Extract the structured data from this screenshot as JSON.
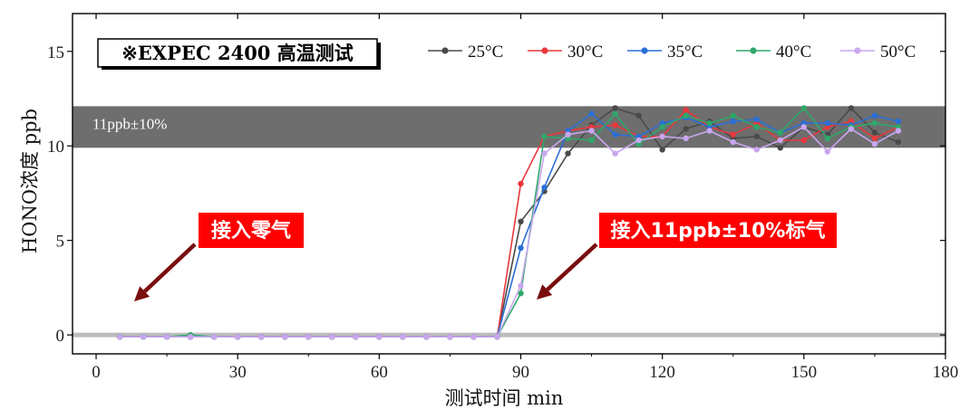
{
  "chart_data": {
    "type": "line",
    "title": "※EXPEC 2400 高温测试",
    "xlabel": "测试时间 min",
    "ylabel": "HONO浓度 ppb",
    "xlim": [
      -5,
      180
    ],
    "ylim": [
      -1,
      17
    ],
    "xticks": [
      0,
      30,
      60,
      90,
      120,
      150,
      180
    ],
    "yticks": [
      0,
      5,
      10,
      15
    ],
    "grid": false,
    "legend_position": "top-right",
    "band": {
      "label": "11ppb±10%",
      "y0": 9.9,
      "y1": 12.1,
      "color": "#6e6e6e"
    },
    "baseline": {
      "y": 0,
      "color": "#bdbdbd"
    },
    "annotations": [
      {
        "text": "接入零气",
        "color": "#ff0000",
        "arrow_color": "#7a0e0e",
        "x": 5,
        "y": 0.5
      },
      {
        "text": "接入11ppb±10%标气",
        "color": "#ff0000",
        "arrow_color": "#7a0e0e",
        "x": 93,
        "y": 0.5
      }
    ],
    "x": [
      5,
      10,
      15,
      20,
      25,
      30,
      35,
      40,
      45,
      50,
      55,
      60,
      65,
      70,
      75,
      80,
      85,
      90,
      95,
      100,
      105,
      110,
      115,
      120,
      125,
      130,
      135,
      140,
      145,
      150,
      155,
      160,
      165,
      170
    ],
    "series": [
      {
        "name": "25°C",
        "color": "#4a4a4a",
        "values": [
          -0.1,
          -0.1,
          -0.1,
          -0.1,
          -0.1,
          -0.1,
          -0.1,
          -0.1,
          -0.1,
          -0.1,
          -0.1,
          -0.1,
          -0.1,
          -0.1,
          -0.1,
          -0.1,
          -0.1,
          6.0,
          7.6,
          9.6,
          11.1,
          12.0,
          11.6,
          9.8,
          10.9,
          11.3,
          10.4,
          10.5,
          9.9,
          11.0,
          10.6,
          12.0,
          10.7,
          10.2
        ]
      },
      {
        "name": "30°C",
        "color": "#e8383d",
        "values": [
          -0.1,
          -0.1,
          -0.1,
          -0.1,
          -0.1,
          -0.1,
          -0.1,
          -0.1,
          -0.1,
          -0.1,
          -0.1,
          -0.1,
          -0.1,
          -0.1,
          -0.1,
          -0.1,
          -0.1,
          8.0,
          10.5,
          10.8,
          11.0,
          11.1,
          10.5,
          10.5,
          11.9,
          11.0,
          10.6,
          11.2,
          10.3,
          10.3,
          11.0,
          11.3,
          10.4,
          11.0
        ]
      },
      {
        "name": "35°C",
        "color": "#2a6fd6",
        "values": [
          -0.1,
          -0.1,
          -0.1,
          -0.1,
          -0.1,
          -0.1,
          -0.1,
          -0.1,
          -0.1,
          -0.1,
          -0.1,
          -0.1,
          -0.1,
          -0.1,
          -0.1,
          -0.1,
          -0.1,
          4.6,
          7.8,
          10.8,
          11.7,
          10.6,
          10.5,
          11.2,
          11.5,
          11.0,
          11.3,
          11.4,
          10.7,
          11.2,
          11.2,
          11.1,
          11.6,
          11.3
        ]
      },
      {
        "name": "40°C",
        "color": "#2ea86a",
        "values": [
          -0.1,
          -0.1,
          -0.1,
          0.0,
          -0.1,
          -0.1,
          -0.1,
          -0.1,
          -0.1,
          -0.1,
          -0.1,
          -0.1,
          -0.1,
          -0.1,
          -0.1,
          -0.1,
          -0.1,
          2.2,
          10.5,
          10.4,
          10.3,
          11.7,
          10.1,
          11.0,
          11.6,
          11.2,
          11.6,
          11.0,
          10.7,
          12.0,
          10.4,
          11.0,
          11.2,
          11.0
        ]
      },
      {
        "name": "50°C",
        "color": "#c9a6ef",
        "values": [
          -0.1,
          -0.1,
          -0.1,
          -0.1,
          -0.1,
          -0.1,
          -0.1,
          -0.1,
          -0.1,
          -0.1,
          -0.1,
          -0.1,
          -0.1,
          -0.1,
          -0.1,
          -0.1,
          -0.1,
          2.6,
          9.6,
          10.6,
          10.8,
          9.6,
          10.3,
          10.5,
          10.4,
          10.8,
          10.2,
          9.8,
          10.3,
          11.0,
          9.7,
          10.9,
          10.1,
          10.8
        ]
      }
    ]
  }
}
